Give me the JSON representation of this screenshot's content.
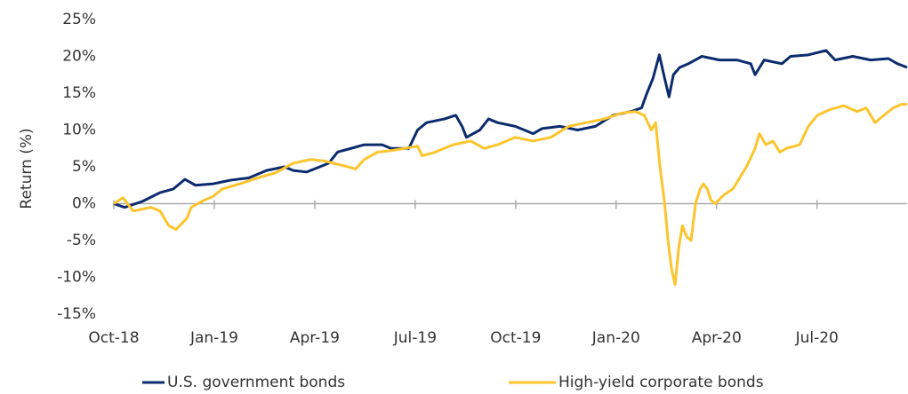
{
  "chart_data": {
    "type": "line",
    "y_label": "Return (%)",
    "xlim": [
      0,
      23.69
    ],
    "xticks": [
      {
        "value": 0,
        "label": "Oct-18"
      },
      {
        "value": 3,
        "label": "Jan-19"
      },
      {
        "value": 6,
        "label": "Apr-19"
      },
      {
        "value": 9,
        "label": "Jul-19"
      },
      {
        "value": 12,
        "label": "Oct-19"
      },
      {
        "value": 15,
        "label": "Jan-20"
      },
      {
        "value": 18,
        "label": "Apr-20"
      },
      {
        "value": 21,
        "label": "Jul-20"
      }
    ],
    "ylim": [
      -15,
      25
    ],
    "yticks": [
      {
        "value": -15,
        "label": "-15%"
      },
      {
        "value": -10,
        "label": "-10%"
      },
      {
        "value": -5,
        "label": "-5%"
      },
      {
        "value": 0,
        "label": "0%"
      },
      {
        "value": 5,
        "label": "5%"
      },
      {
        "value": 10,
        "label": "10%"
      },
      {
        "value": 15,
        "label": "15%"
      },
      {
        "value": 20,
        "label": "20%"
      },
      {
        "value": 25,
        "label": "25%"
      }
    ],
    "series": [
      {
        "name": "U.S. government bonds",
        "color": "#0b2b6e",
        "x": [
          0,
          0.32,
          0.85,
          1.38,
          1.78,
          2.12,
          2.44,
          2.97,
          3.5,
          4.03,
          4.56,
          5.09,
          5.36,
          5.76,
          6.15,
          6.42,
          6.68,
          7.08,
          7.48,
          8.01,
          8.28,
          8.81,
          9.07,
          9.34,
          9.87,
          10.21,
          10.4,
          10.53,
          10.93,
          11.19,
          11.46,
          11.99,
          12.52,
          12.79,
          13.32,
          13.85,
          14.38,
          14.91,
          15.44,
          15.76,
          15.92,
          16.1,
          16.29,
          16.45,
          16.58,
          16.71,
          16.9,
          17.16,
          17.56,
          18.09,
          18.62,
          19.02,
          19.15,
          19.42,
          19.95,
          20.21,
          20.74,
          21.27,
          21.54,
          22.07,
          22.6,
          23.13,
          23.4,
          23.69
        ],
        "values": [
          0,
          -0.5,
          0.3,
          1.5,
          2,
          3.3,
          2.5,
          2.7,
          3.2,
          3.5,
          4.5,
          5,
          4.5,
          4.3,
          5,
          5.5,
          7,
          7.5,
          8,
          8,
          7.5,
          7.5,
          10,
          11,
          11.5,
          12,
          10.5,
          9,
          10,
          11.5,
          11,
          10.5,
          9.5,
          10.2,
          10.5,
          10,
          10.5,
          12,
          12.5,
          13,
          15,
          17,
          20.2,
          17,
          14.5,
          17.5,
          18.5,
          19,
          20,
          19.5,
          19.5,
          19,
          17.5,
          19.5,
          19,
          20,
          20.2,
          20.8,
          19.5,
          20,
          19.5,
          19.7,
          19,
          18.5
        ]
      },
      {
        "name": "High-yield corporate bonds",
        "color": "#fcc52e",
        "x": [
          0,
          0.27,
          0.58,
          1.11,
          1.38,
          1.64,
          1.86,
          2.18,
          2.31,
          2.71,
          2.97,
          3.24,
          3.77,
          4.3,
          4.83,
          5.36,
          5.89,
          6.29,
          6.82,
          7.22,
          7.48,
          7.88,
          8.28,
          8.68,
          9.07,
          9.21,
          9.6,
          10.13,
          10.66,
          11.06,
          11.46,
          11.99,
          12.52,
          13.05,
          13.58,
          14.11,
          14.64,
          15.17,
          15.57,
          15.84,
          16.05,
          16.18,
          16.31,
          16.45,
          16.55,
          16.66,
          16.76,
          16.87,
          16.98,
          17.11,
          17.24,
          17.37,
          17.51,
          17.61,
          17.72,
          17.83,
          17.96,
          18.22,
          18.49,
          18.89,
          19.15,
          19.28,
          19.47,
          19.68,
          19.89,
          20.08,
          20.48,
          20.74,
          21.01,
          21.4,
          21.8,
          22.2,
          22.47,
          22.73,
          23.0,
          23.27,
          23.53,
          23.69
        ],
        "values": [
          0,
          0.8,
          -1,
          -0.5,
          -1,
          -3,
          -3.5,
          -2,
          -0.5,
          0.5,
          1,
          2,
          2.7,
          3.5,
          4.2,
          5.5,
          6,
          5.8,
          5.2,
          4.7,
          6,
          7,
          7.2,
          7.5,
          7.8,
          6.5,
          7,
          8,
          8.5,
          7.5,
          8,
          9,
          8.5,
          9,
          10.5,
          11,
          11.5,
          12.3,
          12.5,
          12,
          10,
          11,
          5,
          0,
          -5,
          -9,
          -11,
          -6,
          -3,
          -4.5,
          -5,
          0,
          2,
          2.7,
          2,
          0.5,
          0,
          1.2,
          2,
          5,
          7.5,
          9.5,
          8,
          8.5,
          7,
          7.5,
          8,
          10.5,
          12,
          12.8,
          13.3,
          12.5,
          13,
          11,
          12,
          13,
          13.5,
          13.5
        ]
      }
    ]
  }
}
